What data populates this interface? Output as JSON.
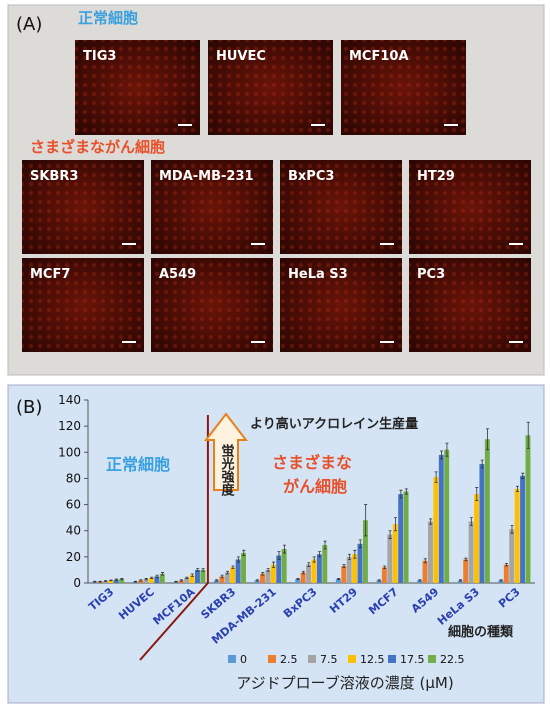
{
  "panel_a": {
    "label": "(A)",
    "normal": {
      "label": "正常細胞",
      "cells": [
        "TIG3",
        "HUVEC",
        "MCF10A"
      ]
    },
    "cancer": {
      "label": "さまざまながん細胞",
      "cells": [
        "SKBR3",
        "MDA-MB-231",
        "BxPC3",
        "HT29",
        "MCF7",
        "A549",
        "HeLa S3",
        "PC3"
      ]
    }
  },
  "chart_data": {
    "type": "bar",
    "panel_label": "(B)",
    "x_label": "細胞の種類",
    "legend_title": "アジドプローブ溶液の濃度 (μM)",
    "annotations": {
      "arrow": "蛍光強度",
      "higher": "より高いアクロレイン生産量",
      "normal": "正常細胞",
      "cancer": [
        "さまざまな",
        "がん細胞"
      ]
    },
    "categories": [
      "TIG3",
      "HUVEC",
      "MCF10A",
      "SKBR3",
      "MDA-MB-231",
      "BxPC3",
      "HT29",
      "MCF7",
      "A549",
      "HeLa S3",
      "PC3"
    ],
    "ylim": [
      0,
      140
    ],
    "yticks": [
      0,
      20,
      40,
      60,
      80,
      100,
      120,
      140
    ],
    "series": [
      {
        "name": "0",
        "color": "#5b9bd5",
        "values": [
          1,
          1,
          1,
          2,
          2,
          3,
          3,
          2,
          2,
          2,
          2
        ],
        "errors": [
          0.3,
          0.3,
          0.3,
          0.5,
          0.5,
          0.5,
          0.5,
          0.5,
          0.5,
          0.5,
          0.5
        ]
      },
      {
        "name": "2.5",
        "color": "#ed7d31",
        "values": [
          1,
          2,
          2,
          5,
          7,
          8,
          13,
          12,
          17,
          18,
          14
        ],
        "errors": [
          0.3,
          0.5,
          0.5,
          1,
          1,
          1,
          1,
          1,
          1.5,
          1,
          1
        ]
      },
      {
        "name": "7.5",
        "color": "#a5a5a5",
        "values": [
          1.5,
          3,
          4,
          8,
          10,
          14,
          20,
          37,
          47,
          47,
          41
        ],
        "errors": [
          0.3,
          0.5,
          0.5,
          1,
          1,
          1.5,
          2,
          3,
          2,
          3,
          3
        ]
      },
      {
        "name": "12.5",
        "color": "#ffc000",
        "values": [
          2,
          4,
          6,
          12,
          14,
          18,
          22,
          45,
          81,
          68,
          72
        ],
        "errors": [
          0.3,
          0.5,
          1,
          1,
          2,
          2,
          3,
          5,
          4,
          5,
          2
        ]
      },
      {
        "name": "17.5",
        "color": "#4472c4",
        "values": [
          2.5,
          5,
          10,
          18,
          21,
          22,
          30,
          68,
          98,
          91,
          82
        ],
        "errors": [
          0.5,
          1,
          1,
          2,
          3,
          2,
          3,
          3,
          3,
          3,
          2
        ]
      },
      {
        "name": "22.5",
        "color": "#70ad47",
        "values": [
          3,
          7,
          10,
          23,
          26,
          29,
          48,
          70,
          102,
          110,
          113
        ],
        "errors": [
          0.5,
          1,
          1,
          2,
          3,
          3,
          12,
          2,
          5,
          8,
          10
        ]
      }
    ]
  }
}
